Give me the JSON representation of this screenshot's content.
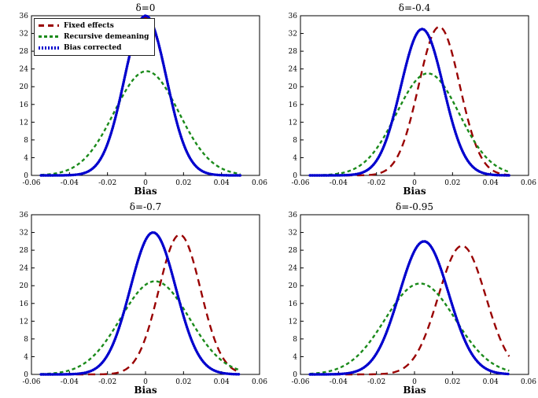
{
  "chart_data": [
    {
      "type": "line",
      "title": "δ=0",
      "xlabel": "Bias",
      "xlim": [
        -0.06,
        0.06
      ],
      "ylim": [
        0,
        36
      ],
      "xticks": [
        -0.06,
        -0.04,
        -0.02,
        0,
        0.02,
        0.04,
        0.06
      ],
      "yticks": [
        0,
        4,
        8,
        12,
        16,
        20,
        24,
        28,
        32,
        36
      ],
      "draw_range": [
        -0.055,
        0.0505
      ],
      "legend_position": "top-left",
      "grid": false,
      "series": [
        {
          "name": "Fixed effects",
          "style": "long-dash",
          "color": "#990000",
          "mean": 0.0,
          "sd": 0.0111,
          "peak": 35.6
        },
        {
          "name": "Recursive demeaning",
          "style": "short-dash",
          "color": "#1a8a1a",
          "mean": 0.0005,
          "sd": 0.017,
          "peak": 23.5
        },
        {
          "name": "Bias corrected",
          "style": "markers",
          "color": "#0000cd",
          "mean": 0.0,
          "sd": 0.0111,
          "peak": 36.0
        }
      ]
    },
    {
      "type": "line",
      "title": "δ=-0.4",
      "xlabel": "Bias",
      "xlim": [
        -0.06,
        0.06
      ],
      "ylim": [
        0,
        36
      ],
      "xticks": [
        -0.06,
        -0.04,
        -0.02,
        0,
        0.02,
        0.04,
        0.06
      ],
      "yticks": [
        0,
        4,
        8,
        12,
        16,
        20,
        24,
        28,
        32,
        36
      ],
      "draw_range": [
        -0.055,
        0.0505
      ],
      "grid": false,
      "series": [
        {
          "name": "Fixed effects",
          "style": "long-dash",
          "color": "#990000",
          "mean": 0.013,
          "sd": 0.0108,
          "peak": 33.5
        },
        {
          "name": "Recursive demeaning",
          "style": "short-dash",
          "color": "#1a8a1a",
          "mean": 0.007,
          "sd": 0.0165,
          "peak": 23.0
        },
        {
          "name": "Bias corrected",
          "style": "markers",
          "color": "#0000cd",
          "mean": 0.004,
          "sd": 0.0112,
          "peak": 33.0
        }
      ]
    },
    {
      "type": "line",
      "title": "δ=-0.7",
      "xlabel": "Bias",
      "xlim": [
        -0.06,
        0.06
      ],
      "ylim": [
        0,
        36
      ],
      "xticks": [
        -0.06,
        -0.04,
        -0.02,
        0,
        0.02,
        0.04,
        0.06
      ],
      "yticks": [
        0,
        4,
        8,
        12,
        16,
        20,
        24,
        28,
        32,
        36
      ],
      "draw_range": [
        -0.055,
        0.0505
      ],
      "grid": false,
      "series": [
        {
          "name": "Fixed effects",
          "style": "long-dash",
          "color": "#990000",
          "mean": 0.018,
          "sd": 0.011,
          "peak": 31.5
        },
        {
          "name": "Recursive demeaning",
          "style": "short-dash",
          "color": "#1a8a1a",
          "mean": 0.005,
          "sd": 0.018,
          "peak": 21.0
        },
        {
          "name": "Bias corrected",
          "style": "markers",
          "color": "#0000cd",
          "mean": 0.004,
          "sd": 0.012,
          "peak": 32.0
        }
      ]
    },
    {
      "type": "line",
      "title": "δ=-0.95",
      "xlabel": "Bias",
      "xlim": [
        -0.06,
        0.06
      ],
      "ylim": [
        0,
        36
      ],
      "xticks": [
        -0.06,
        -0.04,
        -0.02,
        0,
        0.02,
        0.04,
        0.06
      ],
      "yticks": [
        0,
        4,
        8,
        12,
        16,
        20,
        24,
        28,
        32,
        36
      ],
      "draw_range": [
        -0.055,
        0.0505
      ],
      "grid": false,
      "series": [
        {
          "name": "Fixed effects",
          "style": "long-dash",
          "color": "#990000",
          "mean": 0.025,
          "sd": 0.0125,
          "peak": 29.0
        },
        {
          "name": "Recursive demeaning",
          "style": "short-dash",
          "color": "#1a8a1a",
          "mean": 0.003,
          "sd": 0.0185,
          "peak": 20.5
        },
        {
          "name": "Bias corrected",
          "style": "markers",
          "color": "#0000cd",
          "mean": 0.005,
          "sd": 0.013,
          "peak": 30.0
        }
      ]
    }
  ]
}
